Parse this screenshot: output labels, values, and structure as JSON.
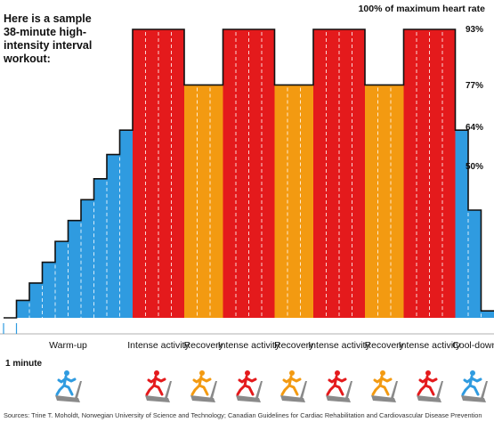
{
  "header": {
    "title": "Here is a sample 38-minute high-intensity interval workout:",
    "max_label": "100% of maximum heart rate"
  },
  "chart_data": {
    "type": "bar",
    "title": "Here is a sample 38-minute high-intensity interval workout:",
    "ylabel": "100% of maximum heart rate",
    "ylim": [
      0,
      100
    ],
    "y_tick_labels": [
      "93%",
      "77%",
      "64%",
      "50%"
    ],
    "y_ticks": [
      93,
      77,
      64,
      50
    ],
    "x_note": "1 minute",
    "grid": "dashed white lines marking each minute",
    "colors": {
      "warmup": "#2f9be0",
      "intense": "#e41a1c",
      "recovery": "#f39a11",
      "cooldown": "#2f9be0"
    },
    "phases": [
      {
        "name": "Warm-up",
        "label": "Warm-up",
        "kind": "warmup",
        "minutes": 10
      },
      {
        "name": "Intense activity",
        "label": "Intense activity",
        "kind": "intense",
        "minutes": 4
      },
      {
        "name": "Recovery",
        "label": "Recovery",
        "kind": "recovery",
        "minutes": 3
      },
      {
        "name": "Intense activity",
        "label": "Intense activity",
        "kind": "intense",
        "minutes": 4
      },
      {
        "name": "Recovery",
        "label": "Recovery",
        "kind": "recovery",
        "minutes": 3
      },
      {
        "name": "Intense activity",
        "label": "Intense activity",
        "kind": "intense",
        "minutes": 4
      },
      {
        "name": "Recovery",
        "label": "Recovery",
        "kind": "recovery",
        "minutes": 3
      },
      {
        "name": "Intense activity",
        "label": "Intense activity",
        "kind": "intense",
        "minutes": 4
      },
      {
        "name": "Cool-down",
        "label": "Cool-down",
        "kind": "cooldown",
        "minutes": 3
      }
    ],
    "minute_values": [
      10,
      15,
      20,
      26,
      32,
      38,
      44,
      50,
      57,
      64,
      93,
      93,
      93,
      93,
      77,
      77,
      77,
      93,
      93,
      93,
      93,
      77,
      77,
      77,
      93,
      93,
      93,
      93,
      77,
      77,
      77,
      93,
      93,
      93,
      93,
      64,
      41,
      12
    ]
  },
  "footer": {
    "minute_label": "1 minute",
    "source": "Sources: Trine T. Moholdt, Norwegian University of Science and Technology; Canadian Guidelines for Cardiac Rehabilitation and Cardiovascular Disease Prevention"
  }
}
